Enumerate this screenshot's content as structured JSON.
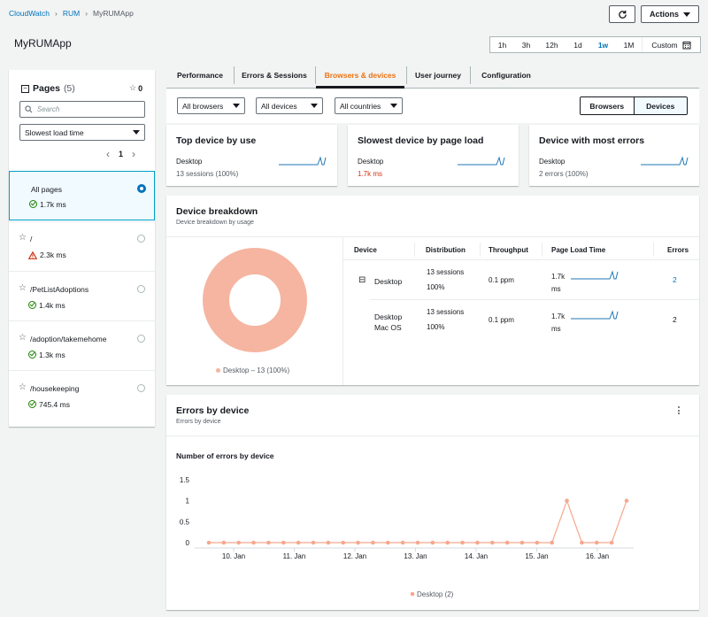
{
  "breadcrumb": [
    "CloudWatch",
    "RUM",
    "MyRUMApp"
  ],
  "page_title": "MyRUMApp",
  "header": {
    "actions_label": "Actions"
  },
  "time_range": {
    "options": [
      "1h",
      "3h",
      "12h",
      "1d",
      "1w",
      "1M",
      "Custom"
    ],
    "selected": "1w"
  },
  "pages_panel": {
    "title": "Pages",
    "count": "(5)",
    "favorites": "0",
    "search_placeholder": "Search",
    "sort_value": "Slowest load time",
    "page_number": "1",
    "items": [
      {
        "name": "All pages",
        "value": "1.7k ms",
        "status": "ok",
        "selected": true
      },
      {
        "name": "/",
        "value": "2.3k ms",
        "status": "warn",
        "selected": false
      },
      {
        "name": "/PetListAdoptions",
        "value": "1.4k ms",
        "status": "ok",
        "selected": false
      },
      {
        "name": "/adoption/takemehome",
        "value": "1.3k ms",
        "status": "ok",
        "selected": false
      },
      {
        "name": "/housekeeping",
        "value": "745.4 ms",
        "status": "ok",
        "selected": false
      }
    ]
  },
  "tabs": [
    "Performance",
    "Errors & Sessions",
    "Browsers & devices",
    "User journey",
    "Configuration"
  ],
  "active_tab": "Browsers & devices",
  "filters": {
    "browsers": "All browsers",
    "devices": "All devices",
    "countries": "All countries"
  },
  "toggle": {
    "browsers": "Browsers",
    "devices": "Devices",
    "selected": "Devices"
  },
  "summary_cards": [
    {
      "title": "Top device by use",
      "device": "Desktop",
      "detail": "13 sessions (100%)",
      "detail_color": "#545b64"
    },
    {
      "title": "Slowest device by page load",
      "device": "Desktop",
      "detail": "1.7k ms",
      "detail_color": "#d13212"
    },
    {
      "title": "Device with most errors",
      "device": "Desktop",
      "detail": "2 errors (100%)",
      "detail_color": "#545b64"
    }
  ],
  "device_breakdown": {
    "title": "Device breakdown",
    "subtitle": "Device breakdown by usage",
    "legend": "Desktop – 13 (100%)",
    "donut_color": "#f5b5a0",
    "columns": [
      "Device",
      "Distribution",
      "Throughput",
      "Page Load Time",
      "Errors"
    ],
    "rows": [
      {
        "device": "Desktop",
        "device2": "",
        "sessions": "13 sessions",
        "pct": "100%",
        "throughput": "0.1 ppm",
        "load": "1.7k",
        "load_unit": "ms",
        "errors": "2",
        "expand": "⊟"
      },
      {
        "device": "Desktop",
        "device2": "Mac OS",
        "sessions": "13 sessions",
        "pct": "100%",
        "throughput": "0.1 ppm",
        "load": "1.7k",
        "load_unit": "ms",
        "errors": "2",
        "expand": ""
      }
    ]
  },
  "errors_by_device": {
    "title": "Errors by device",
    "subtitle": "Errors by device",
    "chart_title": "Number of errors by device",
    "menu_icon": "vertical-dots-icon"
  },
  "chart_data": {
    "type": "line",
    "title": "Number of errors by device",
    "xlabel": "",
    "ylabel": "",
    "ylim": [
      0,
      1.5
    ],
    "yticks": [
      "0",
      "0.5",
      "1",
      "1.5"
    ],
    "xticks": [
      "10. Jan",
      "11. Jan",
      "12. Jan",
      "13. Jan",
      "14. Jan",
      "15. Jan",
      "16. Jan"
    ],
    "grid": false,
    "legend": "bottom",
    "series": [
      {
        "name": "Desktop (2)",
        "color": "#f5a88e",
        "values": [
          0,
          0,
          0,
          0,
          0,
          0,
          0,
          0,
          0,
          0,
          0,
          0,
          0,
          0,
          0,
          0,
          0,
          0,
          0,
          0,
          0,
          0,
          0,
          0,
          1,
          0,
          0,
          0,
          1
        ]
      }
    ]
  },
  "colors": {
    "accent": "#ec7211",
    "link": "#0073bb",
    "ok": "#1d8102",
    "warn": "#d13212"
  }
}
